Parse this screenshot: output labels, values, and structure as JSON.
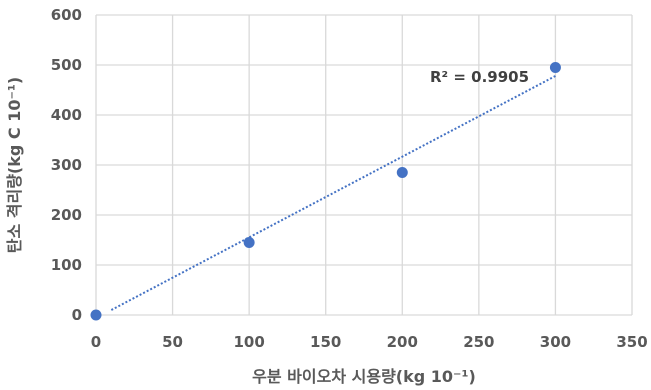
{
  "chart_data": {
    "type": "scatter",
    "xlabel": "우분 바이오차 시용량(kg 10⁻¹)",
    "ylabel": "탄소 격리량(kg C 10⁻¹)",
    "xlim": [
      0,
      350
    ],
    "ylim": [
      0,
      600
    ],
    "x_ticks": [
      "0",
      "50",
      "100",
      "150",
      "200",
      "250",
      "300",
      "350"
    ],
    "y_ticks": [
      "0",
      "100",
      "200",
      "300",
      "400",
      "500",
      "600"
    ],
    "grid": true,
    "series": [
      {
        "points": [
          {
            "x": 0,
            "y": 0
          },
          {
            "x": 100,
            "y": 145
          },
          {
            "x": 200,
            "y": 285
          },
          {
            "x": 300,
            "y": 495
          }
        ]
      }
    ],
    "trendline": {
      "type": "linear",
      "x": [
        10,
        300
      ],
      "y": [
        10,
        478
      ],
      "style": "dotted"
    },
    "annotation": "R² = 0.9905",
    "colors": {
      "points": "#4472C4",
      "trendline": "#4472C4",
      "grid": "#D9D9D9",
      "text": "#595959"
    }
  }
}
